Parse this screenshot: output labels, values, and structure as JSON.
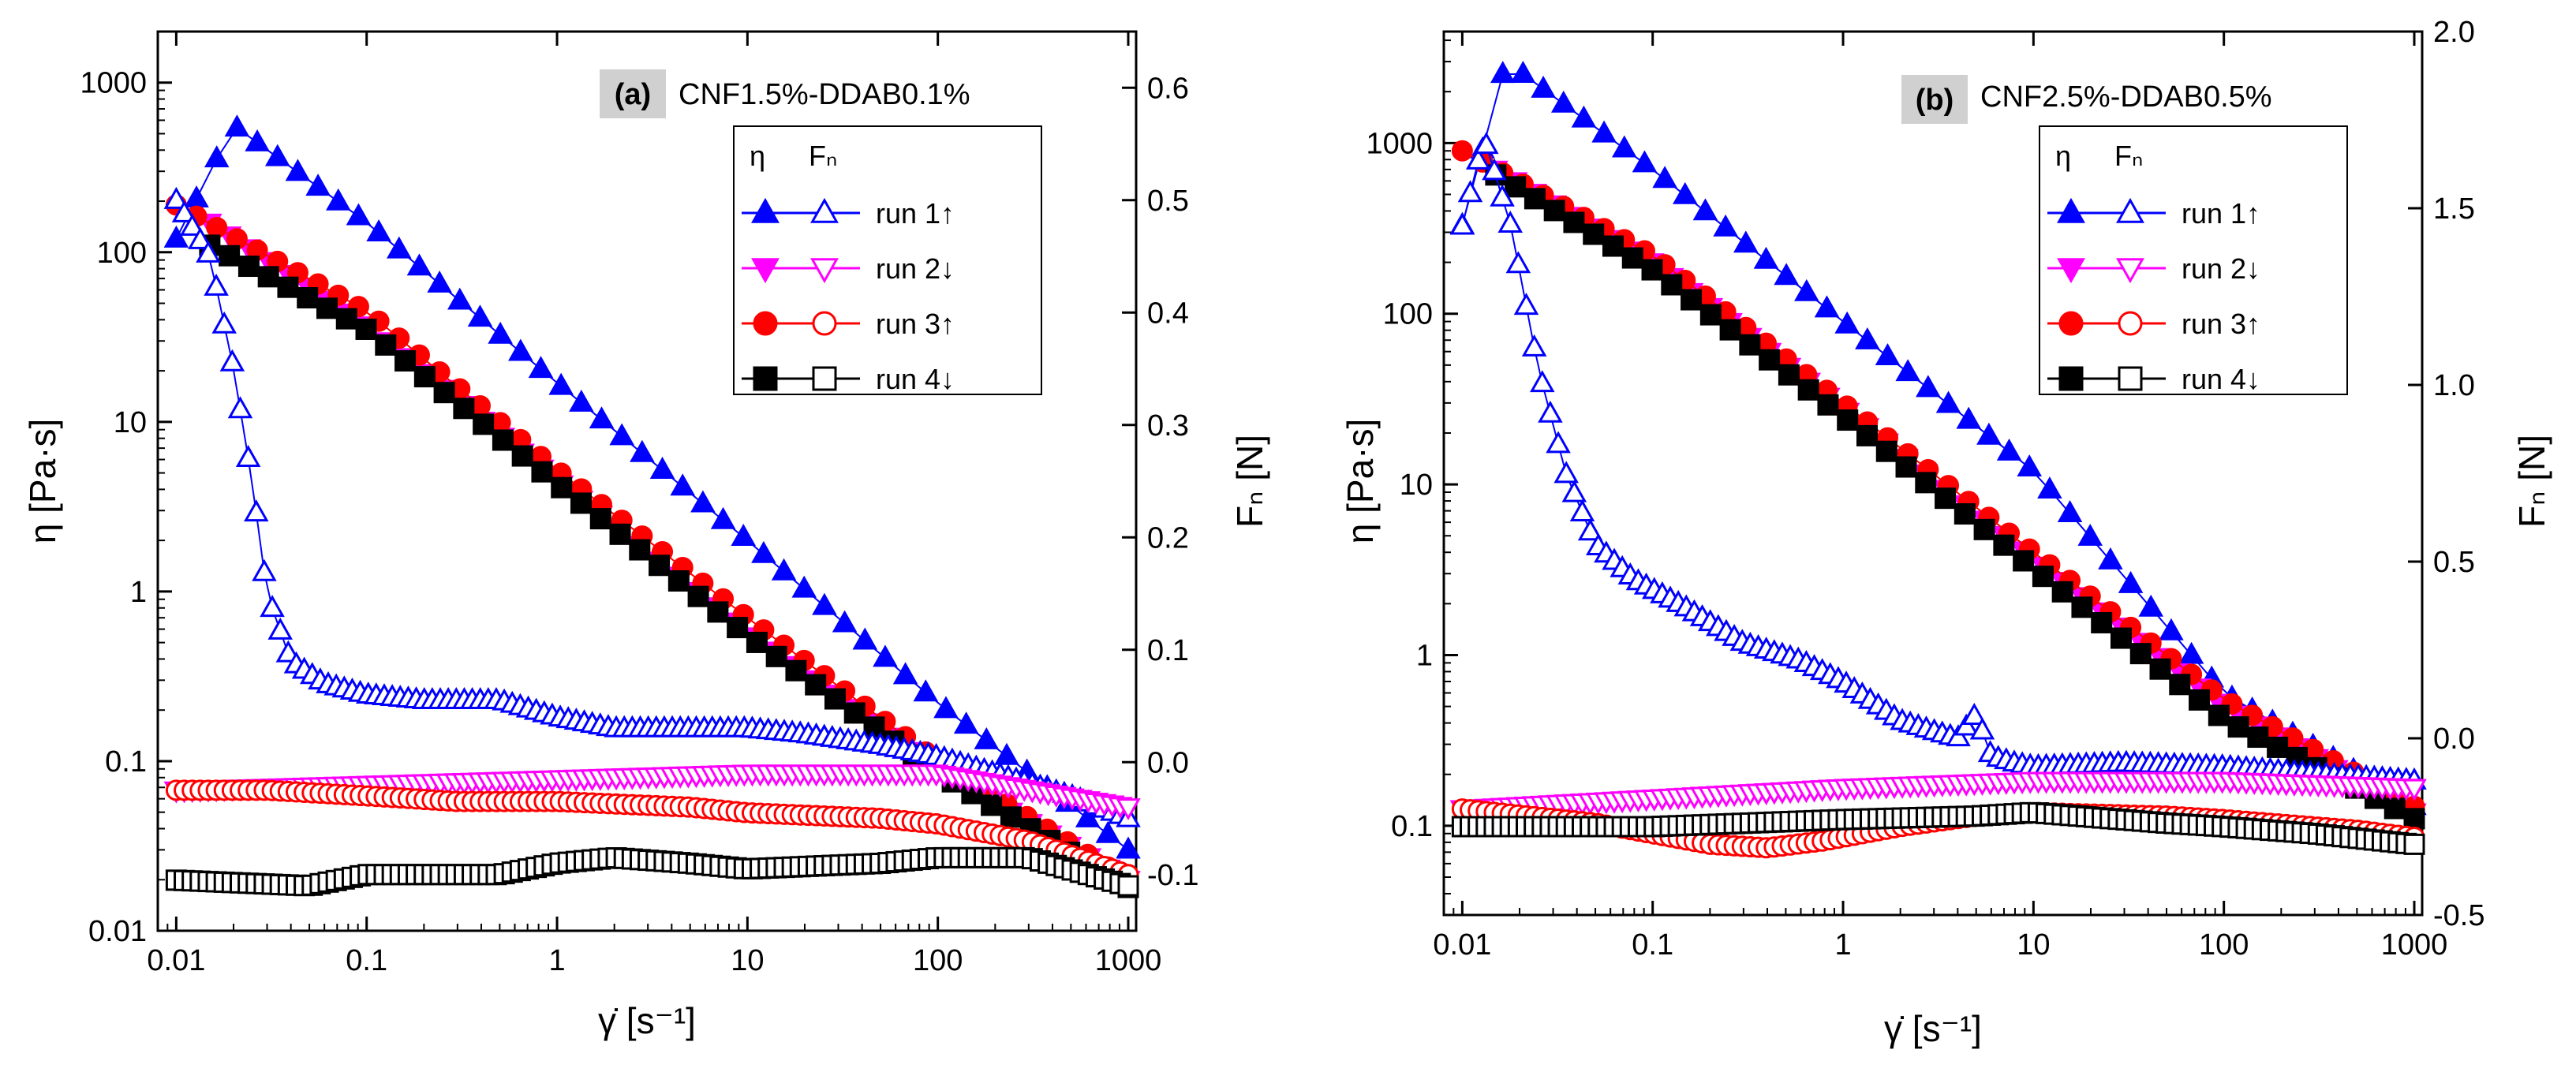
{
  "colors": {
    "run1": "#0000ff",
    "run2": "#ff00ff",
    "run3": "#ff0000",
    "run4": "#000000",
    "label_bg": "#d0d0d0"
  },
  "chart_data": [
    {
      "type": "scatter",
      "panel_label": "(a)",
      "title": "CNF1.5%-DDAB0.1%",
      "xlabel": "γ̇ [s⁻¹]",
      "ylabel": "η [Pa·s]",
      "y2label": "Fₙ [N]",
      "xscale": "log",
      "yscale": "log",
      "xlim": [
        0.008,
        1100
      ],
      "ylim": [
        0.01,
        2000
      ],
      "y2lim": [
        -0.15,
        0.65
      ],
      "xticks": [
        "0.01",
        "0.1",
        "1",
        "10",
        "100",
        "1000"
      ],
      "yticks": [
        "0.01",
        "0.1",
        "1",
        "10",
        "100",
        "1000"
      ],
      "y2ticks": [
        "-0.1",
        "0.0",
        "0.1",
        "0.2",
        "0.3",
        "0.4",
        "0.5",
        "0.6"
      ],
      "legend": {
        "col_eta": "η",
        "col_fn": "Fₙ",
        "entries": [
          "run 1↑",
          "run 2↓",
          "run 3↑",
          "run 4↓"
        ]
      },
      "series": [
        {
          "name": "run 1↑",
          "quantity": "eta",
          "axis": "left",
          "marker": "triangle-up",
          "fill": "filled",
          "color": "#0000ff",
          "x": [
            0.01,
            0.02,
            0.1,
            1,
            10,
            100,
            1000
          ],
          "y": [
            120,
            560,
            150,
            17,
            2,
            0.22,
            0.03
          ]
        },
        {
          "name": "run 2↓",
          "quantity": "eta",
          "axis": "left",
          "marker": "triangle-down",
          "fill": "filled",
          "color": "#ff00ff",
          "x": [
            0.015,
            0.1,
            1,
            10,
            100,
            1000
          ],
          "y": [
            150,
            37,
            4.5,
            0.6,
            0.09,
            0.02
          ]
        },
        {
          "name": "run 3↑",
          "quantity": "eta",
          "axis": "left",
          "marker": "circle",
          "fill": "filled",
          "color": "#ff0000",
          "x": [
            0.01,
            0.1,
            1,
            10,
            100,
            1000
          ],
          "y": [
            190,
            45,
            5.2,
            0.7,
            0.1,
            0.02
          ]
        },
        {
          "name": "run 4↓",
          "quantity": "eta",
          "axis": "left",
          "marker": "square",
          "fill": "filled",
          "color": "#000000",
          "x": [
            0.015,
            0.1,
            1,
            10,
            100,
            1000
          ],
          "y": [
            110,
            35,
            4.3,
            0.55,
            0.085,
            0.018
          ]
        },
        {
          "name": "run 1↑",
          "quantity": "Fn",
          "axis": "right",
          "marker": "triangle-up",
          "fill": "open",
          "color": "#0000ff",
          "x": [
            0.01,
            0.015,
            0.02,
            0.025,
            0.03,
            0.04,
            0.06,
            0.1,
            0.2,
            0.5,
            1,
            2,
            5,
            10,
            20,
            50,
            100,
            200,
            500,
            1000
          ],
          "y": [
            0.5,
            0.45,
            0.35,
            0.25,
            0.15,
            0.09,
            0.07,
            0.06,
            0.055,
            0.055,
            0.04,
            0.03,
            0.03,
            0.03,
            0.025,
            0.015,
            0.005,
            -0.01,
            -0.03,
            -0.05
          ]
        },
        {
          "name": "run 2↓",
          "quantity": "Fn",
          "axis": "right",
          "marker": "triangle-down",
          "fill": "open",
          "color": "#ff00ff",
          "x": [
            0.01,
            0.1,
            1,
            10,
            100,
            1000
          ],
          "y": [
            -0.025,
            -0.02,
            -0.015,
            -0.01,
            -0.01,
            -0.04
          ]
        },
        {
          "name": "run 3↑",
          "quantity": "Fn",
          "axis": "right",
          "marker": "circle",
          "fill": "open",
          "color": "#ff0000",
          "x": [
            0.01,
            0.03,
            0.1,
            0.3,
            1,
            5,
            10,
            50,
            100,
            300,
            1000
          ],
          "y": [
            -0.025,
            -0.025,
            -0.03,
            -0.035,
            -0.035,
            -0.04,
            -0.045,
            -0.05,
            -0.055,
            -0.07,
            -0.1
          ]
        },
        {
          "name": "run 4↓",
          "quantity": "Fn",
          "axis": "right",
          "marker": "square",
          "fill": "open",
          "color": "#000000",
          "x": [
            0.01,
            0.05,
            0.1,
            0.5,
            1,
            2,
            5,
            10,
            50,
            100,
            300,
            1000
          ],
          "y": [
            -0.105,
            -0.11,
            -0.1,
            -0.1,
            -0.09,
            -0.085,
            -0.09,
            -0.095,
            -0.09,
            -0.085,
            -0.085,
            -0.11
          ]
        }
      ]
    },
    {
      "type": "scatter",
      "panel_label": "(b)",
      "title": "CNF2.5%-DDAB0.5%",
      "xlabel": "γ̇ [s⁻¹]",
      "ylabel": "η [Pa·s]",
      "y2label": "Fₙ [N]",
      "xscale": "log",
      "yscale": "log",
      "xlim": [
        0.008,
        1100
      ],
      "ylim": [
        0.03,
        4500
      ],
      "y2lim": [
        -0.5,
        2.0
      ],
      "xticks": [
        "0.01",
        "0.1",
        "1",
        "10",
        "100",
        "1000"
      ],
      "yticks": [
        "0.1",
        "1",
        "10",
        "100",
        "1000"
      ],
      "y2ticks": [
        "-0.5",
        "0.0",
        "0.5",
        "1.0",
        "1.5",
        "2.0"
      ],
      "legend": {
        "col_eta": "η",
        "col_fn": "Fₙ",
        "entries": [
          "run 1↑",
          "run 2↓",
          "run 3↑",
          "run 4↓"
        ]
      },
      "series": [
        {
          "name": "run 1↑",
          "quantity": "eta",
          "axis": "left",
          "marker": "triangle-up",
          "fill": "filled",
          "color": "#0000ff",
          "x": [
            0.01,
            0.017,
            0.1,
            1,
            10,
            100,
            1000
          ],
          "y": [
            330,
            3000,
            700,
            90,
            12,
            0.6,
            0.13
          ]
        },
        {
          "name": "run 2↓",
          "quantity": "eta",
          "axis": "left",
          "marker": "triangle-down",
          "fill": "filled",
          "color": "#ff00ff",
          "x": [
            0.015,
            0.1,
            1,
            10,
            100,
            1000
          ],
          "y": [
            700,
            200,
            28,
            3.7,
            0.5,
            0.12
          ]
        },
        {
          "name": "run 3↑",
          "quantity": "eta",
          "axis": "left",
          "marker": "circle",
          "fill": "filled",
          "color": "#ff0000",
          "x": [
            0.01,
            0.1,
            1,
            10,
            100,
            1000
          ],
          "y": [
            900,
            220,
            30,
            4,
            0.55,
            0.13
          ]
        },
        {
          "name": "run 4↓",
          "quantity": "eta",
          "axis": "left",
          "marker": "square",
          "fill": "filled",
          "color": "#000000",
          "x": [
            0.015,
            0.1,
            1,
            10,
            100,
            1000
          ],
          "y": [
            650,
            180,
            25,
            3.2,
            0.42,
            0.11
          ]
        },
        {
          "name": "run 1↑",
          "quantity": "Fn",
          "axis": "right",
          "marker": "triangle-up",
          "fill": "open",
          "color": "#0000ff",
          "x": [
            0.01,
            0.013,
            0.018,
            0.025,
            0.035,
            0.05,
            0.08,
            0.15,
            0.3,
            0.6,
            1,
            2,
            3,
            4,
            5,
            6,
            8,
            10,
            30,
            100,
            300,
            1000
          ],
          "y": [
            1.45,
            1.7,
            1.45,
            1.05,
            0.75,
            0.55,
            0.45,
            0.37,
            0.27,
            0.22,
            0.16,
            0.05,
            0.02,
            0.0,
            0.07,
            -0.05,
            -0.07,
            -0.08,
            -0.07,
            -0.08,
            -0.1,
            -0.12
          ]
        },
        {
          "name": "run 2↓",
          "quantity": "Fn",
          "axis": "right",
          "marker": "triangle-down",
          "fill": "open",
          "color": "#ff00ff",
          "x": [
            0.01,
            0.1,
            1,
            10,
            100,
            1000
          ],
          "y": [
            -0.2,
            -0.17,
            -0.14,
            -0.12,
            -0.12,
            -0.14
          ]
        },
        {
          "name": "run 3↑",
          "quantity": "Fn",
          "axis": "right",
          "marker": "circle",
          "fill": "open",
          "color": "#ff0000",
          "x": [
            0.01,
            0.05,
            0.1,
            0.2,
            0.4,
            0.8,
            2,
            5,
            10,
            50,
            100,
            500,
            1000
          ],
          "y": [
            -0.2,
            -0.24,
            -0.27,
            -0.3,
            -0.31,
            -0.29,
            -0.25,
            -0.22,
            -0.21,
            -0.22,
            -0.23,
            -0.26,
            -0.28
          ]
        },
        {
          "name": "run 4↓",
          "quantity": "Fn",
          "axis": "right",
          "marker": "square",
          "fill": "open",
          "color": "#000000",
          "x": [
            0.01,
            0.1,
            1,
            5,
            10,
            50,
            100,
            300,
            1000
          ],
          "y": [
            -0.25,
            -0.25,
            -0.23,
            -0.22,
            -0.21,
            -0.24,
            -0.25,
            -0.27,
            -0.3
          ]
        }
      ]
    }
  ]
}
